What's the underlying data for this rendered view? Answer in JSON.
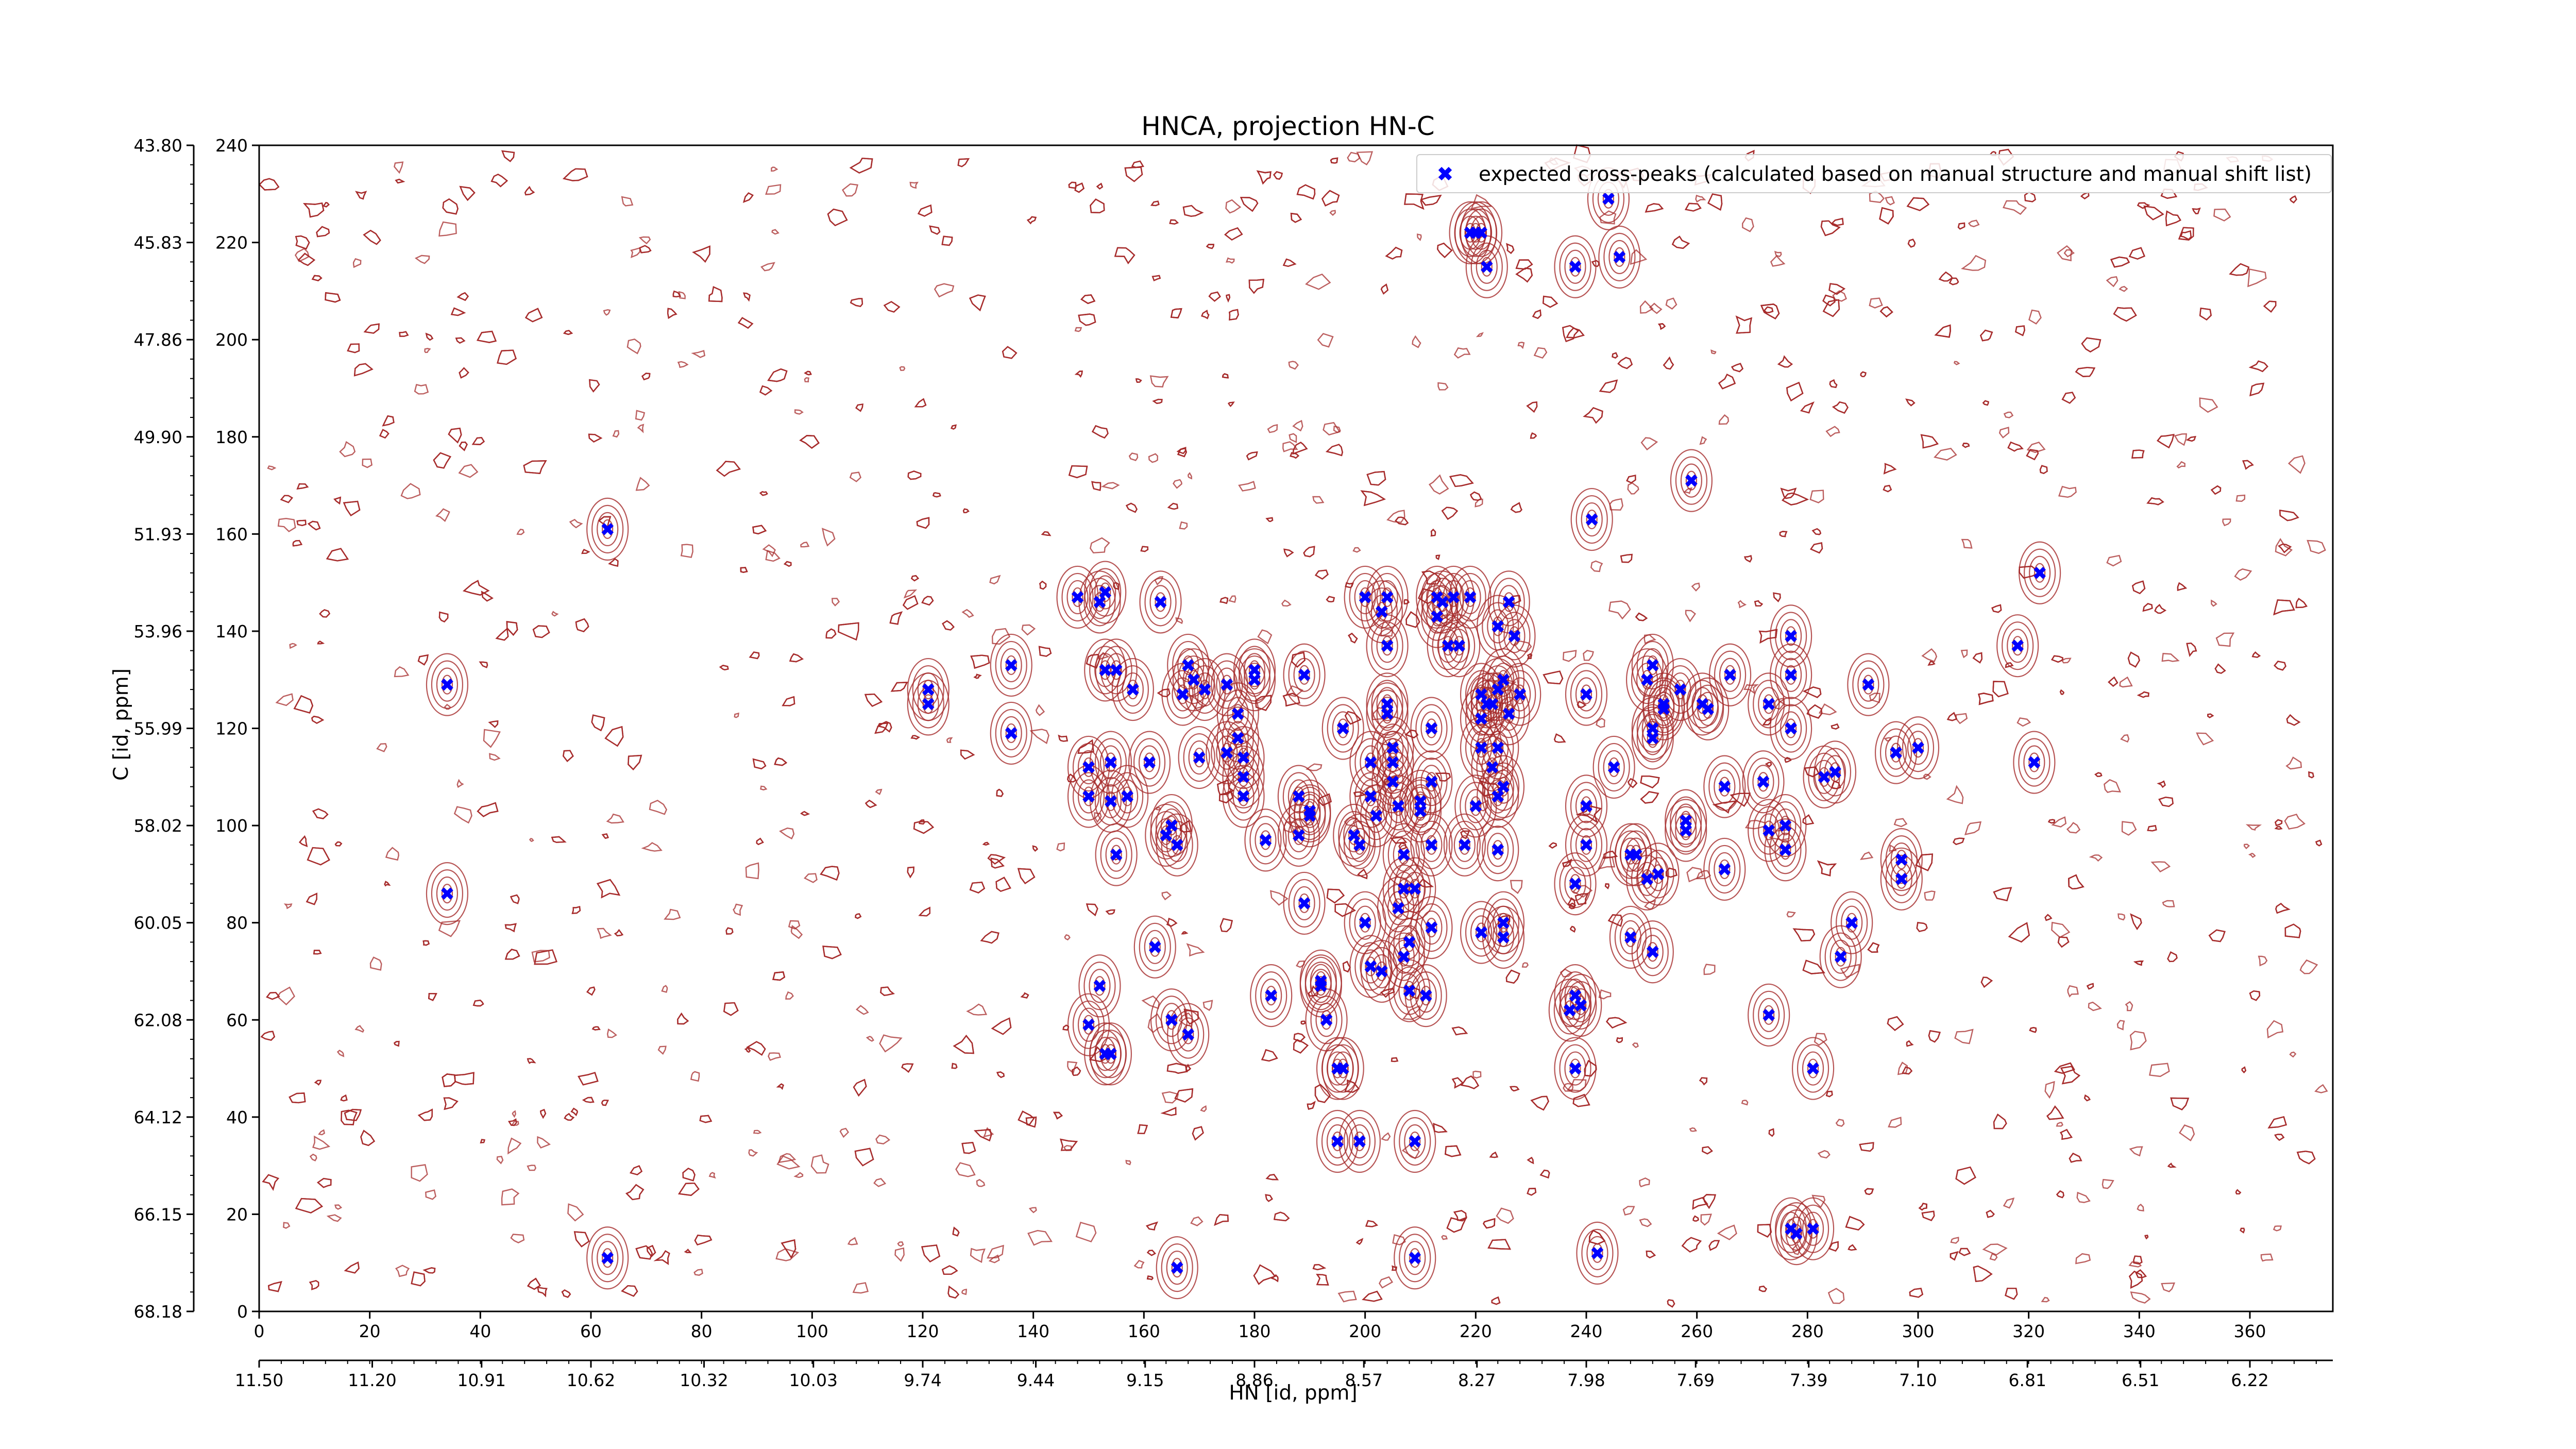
{
  "chart_data": {
    "type": "scatter",
    "title": "HNCA, projection HN-C",
    "xlabel": "HN [id, ppm]",
    "ylabel": "C [id, ppm]",
    "xlim": [
      0,
      375
    ],
    "ylim": [
      0,
      240
    ],
    "x_index_ticks": [
      "0",
      "20",
      "40",
      "60",
      "80",
      "100",
      "120",
      "140",
      "160",
      "180",
      "200",
      "220",
      "240",
      "260",
      "280",
      "300",
      "320",
      "340",
      "360"
    ],
    "x_ppm_ticks": [
      "11.50",
      "11.20",
      "10.91",
      "10.62",
      "10.32",
      "10.03",
      "9.74",
      "9.44",
      "9.15",
      "8.86",
      "8.57",
      "8.27",
      "7.98",
      "7.69",
      "7.39",
      "7.10",
      "6.81",
      "6.51",
      "6.22"
    ],
    "y_index_ticks": [
      "0",
      "20",
      "40",
      "60",
      "80",
      "100",
      "120",
      "140",
      "160",
      "180",
      "200",
      "220",
      "240"
    ],
    "y_ppm_ticks": [
      "68.18",
      "66.15",
      "64.12",
      "62.08",
      "60.05",
      "58.02",
      "55.99",
      "53.96",
      "51.93",
      "49.90",
      "47.86",
      "45.83",
      "43.80"
    ],
    "legend": {
      "label": "expected cross-peaks (calculated based on manual structure and manual shift list)",
      "position": "top-right"
    },
    "series": [
      {
        "name": "expected cross-peaks (calculated based on manual structure and manual shift list)",
        "color": "#0000ff",
        "marker": "x",
        "points": [
          [
            34,
            129
          ],
          [
            34,
            86
          ],
          [
            63,
            161
          ],
          [
            63,
            11
          ],
          [
            121,
            128
          ],
          [
            121,
            125
          ],
          [
            136,
            133
          ],
          [
            136,
            119
          ],
          [
            148,
            147
          ],
          [
            150,
            112
          ],
          [
            150,
            106
          ],
          [
            152,
            146
          ],
          [
            153,
            148
          ],
          [
            153,
            132
          ],
          [
            154,
            113
          ],
          [
            154,
            105
          ],
          [
            155,
            94
          ],
          [
            155,
            132
          ],
          [
            157,
            106
          ],
          [
            158,
            128
          ],
          [
            152,
            67
          ],
          [
            150,
            59
          ],
          [
            153,
            53
          ],
          [
            154,
            53
          ],
          [
            163,
            146
          ],
          [
            161,
            113
          ],
          [
            162,
            75
          ],
          [
            164,
            98
          ],
          [
            165,
            100
          ],
          [
            166,
            96
          ],
          [
            165,
            60
          ],
          [
            168,
            57
          ],
          [
            166,
            9
          ],
          [
            169,
            130
          ],
          [
            167,
            127
          ],
          [
            168,
            133
          ],
          [
            170,
            114
          ],
          [
            171,
            128
          ],
          [
            175,
            115
          ],
          [
            177,
            118
          ],
          [
            178,
            114
          ],
          [
            178,
            110
          ],
          [
            178,
            106
          ],
          [
            175,
            129
          ],
          [
            177,
            123
          ],
          [
            180,
            132
          ],
          [
            180,
            130
          ],
          [
            182,
            97
          ],
          [
            183,
            65
          ],
          [
            189,
            131
          ],
          [
            188,
            106
          ],
          [
            190,
            103
          ],
          [
            188,
            98
          ],
          [
            190,
            102
          ],
          [
            189,
            84
          ],
          [
            192,
            67
          ],
          [
            192,
            68
          ],
          [
            193,
            60
          ],
          [
            195,
            50
          ],
          [
            196,
            50
          ],
          [
            195,
            35
          ],
          [
            196,
            120
          ],
          [
            198,
            98
          ],
          [
            199,
            96
          ],
          [
            199,
            35
          ],
          [
            200,
            147
          ],
          [
            201,
            113
          ],
          [
            201,
            106
          ],
          [
            202,
            102
          ],
          [
            200,
            80
          ],
          [
            201,
            71
          ],
          [
            203,
            70
          ],
          [
            204,
            147
          ],
          [
            203,
            144
          ],
          [
            204,
            137
          ],
          [
            204,
            125
          ],
          [
            204,
            123
          ],
          [
            205,
            116
          ],
          [
            205,
            113
          ],
          [
            205,
            109
          ],
          [
            206,
            104
          ],
          [
            207,
            94
          ],
          [
            207,
            87
          ],
          [
            206,
            83
          ],
          [
            208,
            76
          ],
          [
            207,
            73
          ],
          [
            208,
            66
          ],
          [
            209,
            87
          ],
          [
            210,
            103
          ],
          [
            210,
            105
          ],
          [
            211,
            65
          ],
          [
            212,
            120
          ],
          [
            212,
            109
          ],
          [
            212,
            96
          ],
          [
            212,
            79
          ],
          [
            209,
            35
          ],
          [
            209,
            11
          ],
          [
            213,
            147
          ],
          [
            215,
            137
          ],
          [
            217,
            137
          ],
          [
            213,
            143
          ],
          [
            214,
            146
          ],
          [
            216,
            147
          ],
          [
            218,
            96
          ],
          [
            219,
            147
          ],
          [
            220,
            104
          ],
          [
            221,
            127
          ],
          [
            221,
            122
          ],
          [
            221,
            116
          ],
          [
            222,
            125
          ],
          [
            223,
            112
          ],
          [
            223,
            125
          ],
          [
            224,
            95
          ],
          [
            224,
            106
          ],
          [
            224,
            116
          ],
          [
            225,
            130
          ],
          [
            224,
            128
          ],
          [
            224,
            141
          ],
          [
            225,
            77
          ],
          [
            225,
            80
          ],
          [
            221,
            78
          ],
          [
            225,
            108
          ],
          [
            226,
            146
          ],
          [
            227,
            139
          ],
          [
            228,
            127
          ],
          [
            226,
            123
          ],
          [
            222,
            215
          ],
          [
            219,
            222
          ],
          [
            220,
            222
          ],
          [
            221,
            222
          ],
          [
            238,
            215
          ],
          [
            246,
            217
          ],
          [
            244,
            229
          ],
          [
            241,
            163
          ],
          [
            240,
            127
          ],
          [
            240,
            104
          ],
          [
            240,
            96
          ],
          [
            238,
            88
          ],
          [
            238,
            65
          ],
          [
            239,
            63
          ],
          [
            237,
            62
          ],
          [
            238,
            50
          ],
          [
            242,
            12
          ],
          [
            245,
            112
          ],
          [
            248,
            77
          ],
          [
            248,
            94
          ],
          [
            249,
            94
          ],
          [
            251,
            89
          ],
          [
            253,
            90
          ],
          [
            252,
            74
          ],
          [
            252,
            133
          ],
          [
            251,
            130
          ],
          [
            252,
            120
          ],
          [
            252,
            118
          ],
          [
            254,
            125
          ],
          [
            254,
            124
          ],
          [
            257,
            128
          ],
          [
            258,
            101
          ],
          [
            258,
            99
          ],
          [
            259,
            171
          ],
          [
            261,
            125
          ],
          [
            262,
            124
          ],
          [
            265,
            108
          ],
          [
            265,
            91
          ],
          [
            266,
            131
          ],
          [
            273,
            125
          ],
          [
            272,
            109
          ],
          [
            273,
            99
          ],
          [
            273,
            61
          ],
          [
            276,
            100
          ],
          [
            276,
            95
          ],
          [
            277,
            120
          ],
          [
            277,
            131
          ],
          [
            277,
            139
          ],
          [
            283,
            110
          ],
          [
            285,
            111
          ],
          [
            286,
            73
          ],
          [
            288,
            80
          ],
          [
            291,
            129
          ],
          [
            296,
            115
          ],
          [
            297,
            89
          ],
          [
            297,
            93
          ],
          [
            300,
            116
          ],
          [
            318,
            137
          ],
          [
            321,
            113
          ],
          [
            322,
            152
          ],
          [
            281,
            50
          ],
          [
            281,
            17
          ],
          [
            277,
            17
          ],
          [
            278,
            16
          ]
        ]
      }
    ]
  }
}
